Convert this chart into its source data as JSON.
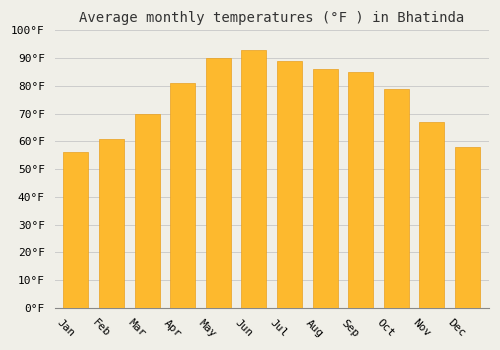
{
  "title": "Average monthly temperatures (°F ) in Bhatinda",
  "months": [
    "Jan",
    "Feb",
    "Mar",
    "Apr",
    "May",
    "Jun",
    "Jul",
    "Aug",
    "Sep",
    "Oct",
    "Nov",
    "Dec"
  ],
  "values": [
    56,
    61,
    70,
    81,
    90,
    93,
    89,
    86,
    85,
    79,
    67,
    58
  ],
  "bar_color": "#FDB92E",
  "bar_edge_color": "#E8A020",
  "background_color": "#F0EFE8",
  "plot_bg_color": "#F0EFE8",
  "grid_color": "#CCCCCC",
  "ylim": [
    0,
    100
  ],
  "ytick_step": 10,
  "title_fontsize": 10,
  "tick_fontsize": 8,
  "font_family": "monospace",
  "xlabel_rotation": -45
}
